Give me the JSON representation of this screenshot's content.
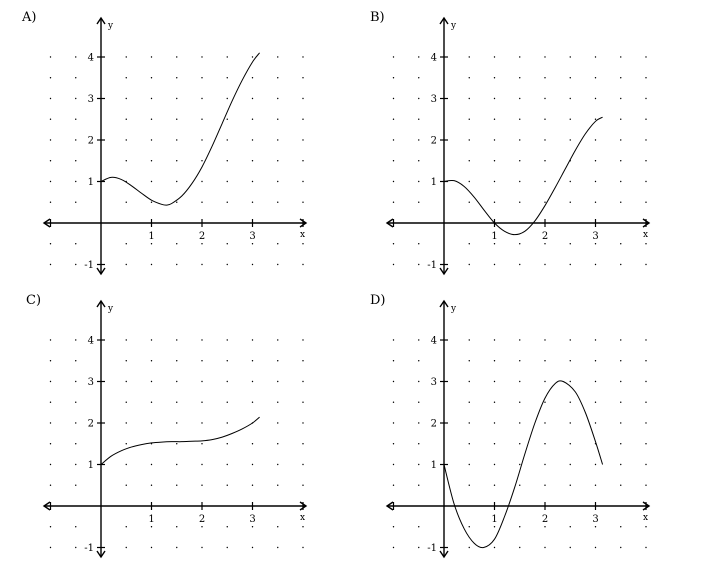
{
  "chart_data": [
    {
      "type": "line",
      "panel": "A)",
      "xlabel": "x",
      "ylabel": "y",
      "xlim": [
        -1,
        4
      ],
      "ylim": [
        -1,
        4
      ],
      "x_ticks": [
        "1",
        "2",
        "3"
      ],
      "y_ticks": [
        "-1",
        "1",
        "2",
        "3",
        "4"
      ],
      "grid": "dotted",
      "series": [
        {
          "x": [
            0,
            0.2,
            0.4,
            0.6,
            0.8,
            1.0,
            1.2,
            1.3,
            1.4,
            1.6,
            1.8,
            2.0,
            2.2,
            2.4,
            2.6,
            2.8,
            3.0,
            3.14
          ],
          "y": [
            1.0,
            1.1,
            1.05,
            0.9,
            0.72,
            0.55,
            0.45,
            0.43,
            0.47,
            0.65,
            0.95,
            1.35,
            1.85,
            2.4,
            2.95,
            3.45,
            3.88,
            4.1
          ]
        }
      ]
    },
    {
      "type": "line",
      "panel": "B)",
      "xlabel": "x",
      "ylabel": "y",
      "xlim": [
        -1,
        4
      ],
      "ylim": [
        -1,
        4
      ],
      "x_ticks": [
        "1",
        "2",
        "3"
      ],
      "y_ticks": [
        "-1",
        "1",
        "2",
        "3",
        "4"
      ],
      "grid": "dotted",
      "series": [
        {
          "x": [
            0,
            0.2,
            0.4,
            0.6,
            0.8,
            1.0,
            1.2,
            1.4,
            1.6,
            1.8,
            2.0,
            2.2,
            2.4,
            2.6,
            2.8,
            3.0,
            3.14
          ],
          "y": [
            1.0,
            1.02,
            0.88,
            0.62,
            0.3,
            0.0,
            -0.2,
            -0.28,
            -0.2,
            0.05,
            0.42,
            0.85,
            1.3,
            1.75,
            2.15,
            2.45,
            2.55
          ]
        }
      ]
    },
    {
      "type": "line",
      "panel": "C)",
      "xlabel": "x",
      "ylabel": "y",
      "xlim": [
        -1,
        4
      ],
      "ylim": [
        -1,
        4
      ],
      "x_ticks": [
        "1",
        "2",
        "3"
      ],
      "y_ticks": [
        "-1",
        "1",
        "2",
        "3",
        "4"
      ],
      "grid": "dotted",
      "series": [
        {
          "x": [
            0,
            0.2,
            0.4,
            0.6,
            0.8,
            1.0,
            1.2,
            1.4,
            1.6,
            1.8,
            2.0,
            2.2,
            2.4,
            2.6,
            2.8,
            3.0,
            3.14
          ],
          "y": [
            1.0,
            1.2,
            1.33,
            1.42,
            1.48,
            1.52,
            1.54,
            1.55,
            1.55,
            1.56,
            1.57,
            1.6,
            1.66,
            1.75,
            1.86,
            2.0,
            2.14
          ]
        }
      ]
    },
    {
      "type": "line",
      "panel": "D)",
      "xlabel": "x",
      "ylabel": "y",
      "xlim": [
        -1,
        4
      ],
      "ylim": [
        -1,
        4
      ],
      "x_ticks": [
        "1",
        "2",
        "3"
      ],
      "y_ticks": [
        "-1",
        "1",
        "2",
        "3",
        "4"
      ],
      "grid": "dotted",
      "series": [
        {
          "x": [
            0,
            0.2,
            0.4,
            0.6,
            0.785,
            1.0,
            1.2,
            1.4,
            1.6,
            1.8,
            2.0,
            2.2,
            2.36,
            2.6,
            2.8,
            3.0,
            3.14
          ],
          "y": [
            1.0,
            0.05,
            -0.55,
            -0.9,
            -1.0,
            -0.8,
            -0.25,
            0.45,
            1.25,
            2.0,
            2.6,
            2.95,
            3.0,
            2.75,
            2.25,
            1.55,
            1.0
          ]
        }
      ]
    }
  ]
}
